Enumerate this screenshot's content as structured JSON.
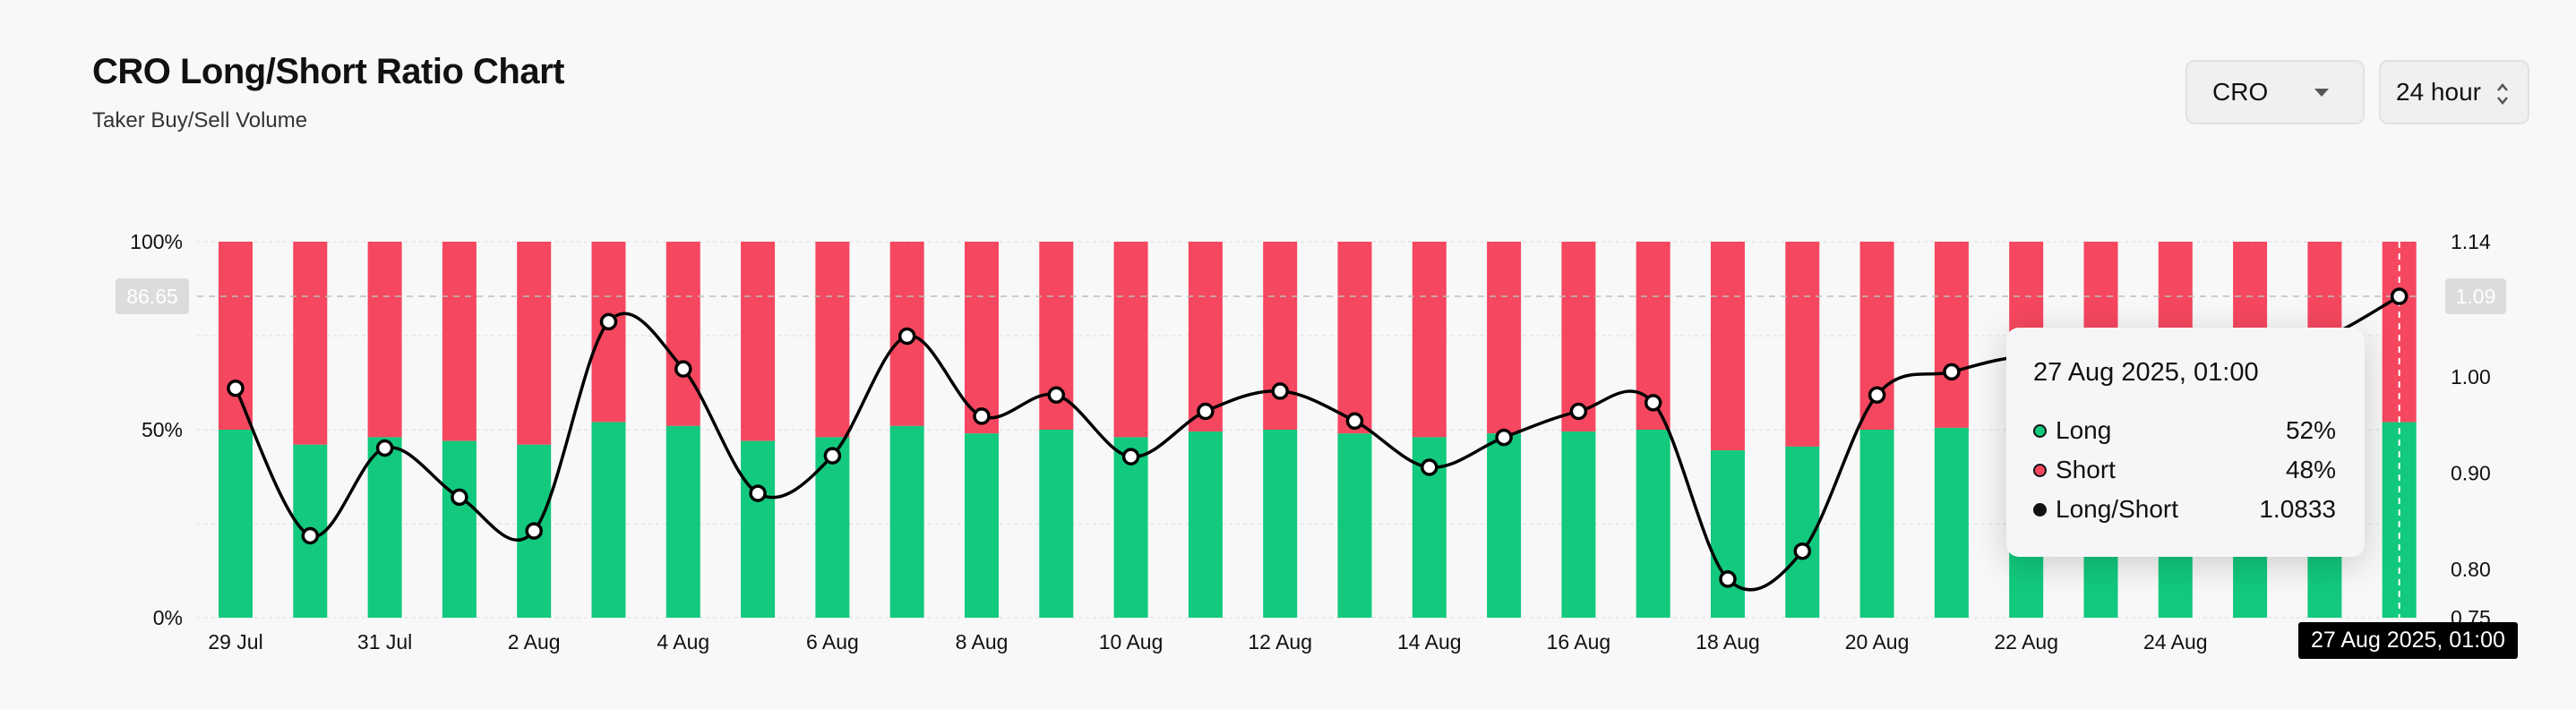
{
  "header": {
    "title": "CRO Long/Short Ratio Chart",
    "subtitle": "Taker Buy/Sell Volume"
  },
  "controls": {
    "coin_value": "CRO",
    "range_value": "24 hour"
  },
  "crosshair": {
    "left_label": "86.65",
    "right_label": "1.09",
    "date_label": "27 Aug 2025, 01:00"
  },
  "tooltip": {
    "date": "27 Aug 2025, 01:00",
    "rows": [
      {
        "label": "Long",
        "value": "52%",
        "color": "#12c97d"
      },
      {
        "label": "Short",
        "value": "48%",
        "color": "#f5475f"
      },
      {
        "label": "Long/Short",
        "value": "1.0833",
        "color": "#111111"
      }
    ]
  },
  "colors": {
    "long": "#12c97d",
    "short": "#f5475f",
    "ratio_line": "#000000"
  },
  "chart_data": {
    "type": "bar",
    "stacked_percent": true,
    "categories": [
      "29 Jul",
      "30 Jul",
      "31 Jul",
      "1 Aug",
      "2 Aug",
      "3 Aug",
      "4 Aug",
      "5 Aug",
      "6 Aug",
      "7 Aug",
      "8 Aug",
      "9 Aug",
      "10 Aug",
      "11 Aug",
      "12 Aug",
      "13 Aug",
      "14 Aug",
      "15 Aug",
      "16 Aug",
      "17 Aug",
      "18 Aug",
      "19 Aug",
      "20 Aug",
      "21 Aug",
      "22 Aug",
      "23 Aug",
      "24 Aug",
      "25 Aug",
      "26 Aug",
      "27 Aug"
    ],
    "x_tick_labels": [
      "29 Jul",
      "31 Jul",
      "2 Aug",
      "4 Aug",
      "6 Aug",
      "8 Aug",
      "10 Aug",
      "12 Aug",
      "14 Aug",
      "16 Aug",
      "18 Aug",
      "20 Aug",
      "22 Aug",
      "24 Aug"
    ],
    "series": [
      {
        "name": "Long",
        "values": [
          50,
          46,
          48,
          47,
          46,
          52,
          51,
          47,
          48,
          51,
          49,
          50,
          48,
          49.5,
          50,
          49,
          48,
          49,
          49.5,
          50,
          44.5,
          45.5,
          50,
          50.5,
          50,
          50,
          50,
          50,
          50.5,
          52
        ]
      },
      {
        "name": "Short",
        "values": [
          50,
          54,
          52,
          53,
          54,
          48,
          49,
          53,
          52,
          49,
          51,
          50,
          52,
          50.5,
          50,
          51,
          52,
          51,
          50.5,
          50,
          55.5,
          54.5,
          50,
          49.5,
          50,
          50,
          50,
          50,
          49.5,
          48
        ]
      },
      {
        "name": "Long/Short",
        "axis": "right",
        "values": [
          0.988,
          0.835,
          0.926,
          0.875,
          0.84,
          1.057,
          1.008,
          0.879,
          0.918,
          1.042,
          0.959,
          0.981,
          0.917,
          0.964,
          0.985,
          0.954,
          0.906,
          0.937,
          0.964,
          0.973,
          0.79,
          0.819,
          0.981,
          1.005,
          1.02,
          1.0,
          1.01,
          1.02,
          1.04,
          1.0833
        ]
      }
    ],
    "y_left": {
      "ticks": [
        "100%",
        "50%",
        "0%"
      ],
      "range": [
        0,
        100
      ]
    },
    "y_right": {
      "ticks": [
        "1.14",
        "1.00",
        "0.90",
        "0.80",
        "0.75"
      ],
      "range": [
        0.75,
        1.14
      ]
    },
    "xlabel": "",
    "ylabel": "",
    "grid": true,
    "legend": "none"
  }
}
